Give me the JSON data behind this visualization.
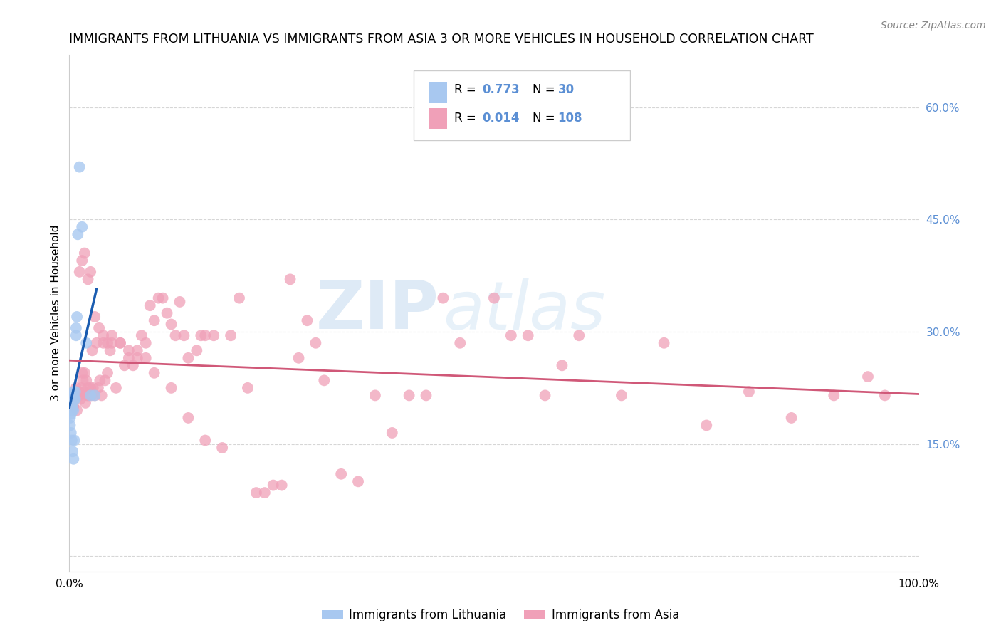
{
  "title": "IMMIGRANTS FROM LITHUANIA VS IMMIGRANTS FROM ASIA 3 OR MORE VEHICLES IN HOUSEHOLD CORRELATION CHART",
  "source": "Source: ZipAtlas.com",
  "ylabel": "3 or more Vehicles in Household",
  "xlim": [
    0,
    1.0
  ],
  "ylim": [
    -0.02,
    0.67
  ],
  "yticks": [
    0.0,
    0.15,
    0.3,
    0.45,
    0.6
  ],
  "yticklabels": [
    "",
    "15.0%",
    "30.0%",
    "45.0%",
    "60.0%"
  ],
  "color_lithuania": "#A8C8F0",
  "color_asia": "#F0A0B8",
  "trendline_lithuania": "#1A5CB0",
  "trendline_asia": "#D05878",
  "watermark_zip": "ZIP",
  "watermark_atlas": "atlas",
  "legend_r1": "0.773",
  "legend_n1": "30",
  "legend_r2": "0.014",
  "legend_n2": "108",
  "lithuania_x": [
    0.001,
    0.001,
    0.001,
    0.002,
    0.002,
    0.002,
    0.002,
    0.003,
    0.003,
    0.003,
    0.003,
    0.004,
    0.004,
    0.004,
    0.005,
    0.005,
    0.005,
    0.006,
    0.006,
    0.007,
    0.007,
    0.008,
    0.008,
    0.009,
    0.01,
    0.012,
    0.015,
    0.02,
    0.025,
    0.03
  ],
  "lithuania_y": [
    0.195,
    0.185,
    0.175,
    0.21,
    0.2,
    0.19,
    0.165,
    0.215,
    0.205,
    0.195,
    0.155,
    0.215,
    0.2,
    0.14,
    0.22,
    0.195,
    0.13,
    0.21,
    0.155,
    0.22,
    0.21,
    0.305,
    0.295,
    0.32,
    0.43,
    0.52,
    0.44,
    0.285,
    0.215,
    0.215
  ],
  "asia_x": [
    0.003,
    0.005,
    0.007,
    0.008,
    0.009,
    0.01,
    0.011,
    0.012,
    0.013,
    0.014,
    0.015,
    0.016,
    0.017,
    0.018,
    0.019,
    0.02,
    0.021,
    0.022,
    0.023,
    0.025,
    0.026,
    0.027,
    0.028,
    0.03,
    0.032,
    0.034,
    0.036,
    0.038,
    0.04,
    0.042,
    0.045,
    0.048,
    0.05,
    0.055,
    0.06,
    0.065,
    0.07,
    0.075,
    0.08,
    0.085,
    0.09,
    0.095,
    0.1,
    0.105,
    0.11,
    0.115,
    0.12,
    0.125,
    0.13,
    0.135,
    0.14,
    0.15,
    0.155,
    0.16,
    0.17,
    0.18,
    0.19,
    0.2,
    0.21,
    0.22,
    0.23,
    0.24,
    0.25,
    0.26,
    0.27,
    0.28,
    0.29,
    0.3,
    0.32,
    0.34,
    0.36,
    0.38,
    0.4,
    0.42,
    0.44,
    0.46,
    0.5,
    0.52,
    0.54,
    0.56,
    0.58,
    0.6,
    0.65,
    0.7,
    0.75,
    0.8,
    0.85,
    0.9,
    0.94,
    0.96,
    0.012,
    0.015,
    0.018,
    0.022,
    0.025,
    0.03,
    0.035,
    0.04,
    0.045,
    0.05,
    0.06,
    0.07,
    0.08,
    0.09,
    0.1,
    0.12,
    0.14,
    0.16
  ],
  "asia_y": [
    0.215,
    0.2,
    0.215,
    0.225,
    0.195,
    0.215,
    0.22,
    0.215,
    0.21,
    0.225,
    0.245,
    0.235,
    0.22,
    0.245,
    0.205,
    0.235,
    0.215,
    0.225,
    0.215,
    0.225,
    0.215,
    0.275,
    0.225,
    0.215,
    0.285,
    0.225,
    0.235,
    0.215,
    0.285,
    0.235,
    0.245,
    0.275,
    0.285,
    0.225,
    0.285,
    0.255,
    0.275,
    0.255,
    0.265,
    0.295,
    0.285,
    0.335,
    0.315,
    0.345,
    0.345,
    0.325,
    0.31,
    0.295,
    0.34,
    0.295,
    0.265,
    0.275,
    0.295,
    0.295,
    0.295,
    0.145,
    0.295,
    0.345,
    0.225,
    0.085,
    0.085,
    0.095,
    0.095,
    0.37,
    0.265,
    0.315,
    0.285,
    0.235,
    0.11,
    0.1,
    0.215,
    0.165,
    0.215,
    0.215,
    0.345,
    0.285,
    0.345,
    0.295,
    0.295,
    0.215,
    0.255,
    0.295,
    0.215,
    0.285,
    0.175,
    0.22,
    0.185,
    0.215,
    0.24,
    0.215,
    0.38,
    0.395,
    0.405,
    0.37,
    0.38,
    0.32,
    0.305,
    0.295,
    0.285,
    0.295,
    0.285,
    0.265,
    0.275,
    0.265,
    0.245,
    0.225,
    0.185,
    0.155
  ]
}
